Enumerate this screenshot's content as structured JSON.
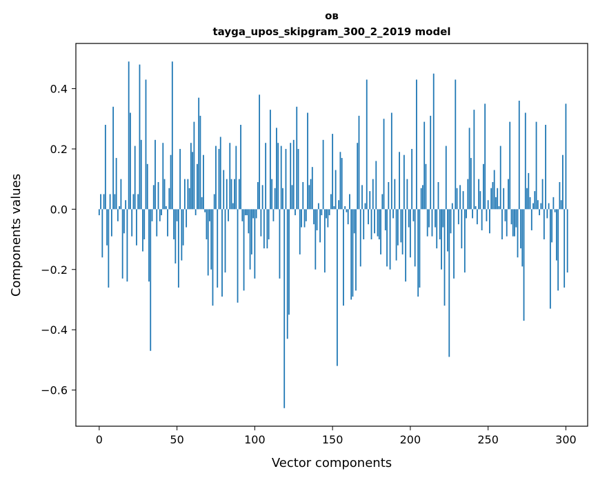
{
  "chart_data": {
    "type": "bar",
    "title": "ов",
    "subtitle": "tayga_upos_skipgram_300_2_2019 model",
    "xlabel": "Vector components",
    "ylabel": "Components values",
    "xlim": [
      -15,
      314
    ],
    "ylim": [
      -0.72,
      0.55
    ],
    "xticks": [
      0,
      50,
      100,
      150,
      200,
      250,
      300
    ],
    "xtick_labels": [
      "0",
      "50",
      "100",
      "150",
      "200",
      "250",
      "300"
    ],
    "yticks": [
      -0.6,
      -0.4,
      -0.2,
      0.0,
      0.2,
      0.4
    ],
    "ytick_labels": [
      "−0.6",
      "−0.4",
      "−0.2",
      "0.0",
      "0.2",
      "0.4"
    ],
    "bar_color": "#1f77b4",
    "grid": false,
    "values": [
      -0.02,
      0.05,
      -0.16,
      0.05,
      0.28,
      -0.12,
      -0.26,
      0.05,
      -0.09,
      0.34,
      0.05,
      0.17,
      -0.04,
      0.01,
      0.1,
      -0.23,
      -0.08,
      0.03,
      -0.24,
      0.49,
      0.32,
      -0.09,
      0.05,
      0.21,
      -0.12,
      0.05,
      0.48,
      0.23,
      -0.14,
      -0.1,
      0.43,
      0.15,
      -0.24,
      -0.47,
      -0.04,
      0.08,
      0.23,
      -0.09,
      0.09,
      -0.04,
      -0.02,
      0.22,
      0.1,
      0.01,
      -0.09,
      0.07,
      0.18,
      0.49,
      -0.1,
      -0.18,
      -0.04,
      -0.26,
      0.2,
      -0.17,
      -0.12,
      0.1,
      -0.06,
      0.1,
      0.07,
      0.22,
      0.19,
      0.29,
      -0.02,
      0.15,
      0.37,
      0.31,
      0.04,
      0.18,
      -0.01,
      -0.1,
      -0.22,
      -0.04,
      -0.2,
      -0.32,
      0.05,
      0.21,
      -0.26,
      0.2,
      0.24,
      -0.29,
      0.13,
      -0.21,
      0.1,
      -0.04,
      0.22,
      0.1,
      0.02,
      0.1,
      0.21,
      -0.31,
      0.1,
      0.28,
      -0.04,
      -0.27,
      -0.02,
      -0.02,
      -0.08,
      -0.2,
      -0.15,
      -0.03,
      -0.23,
      -0.03,
      0.09,
      0.38,
      -0.09,
      0.08,
      -0.13,
      0.22,
      -0.13,
      -0.1,
      0.33,
      0.1,
      -0.04,
      0.07,
      0.27,
      0.22,
      -0.23,
      0.21,
      0.07,
      -0.66,
      0.2,
      -0.43,
      -0.35,
      0.22,
      0.08,
      0.23,
      -0.02,
      0.34,
      0.2,
      -0.15,
      -0.06,
      0.09,
      -0.06,
      -0.04,
      0.32,
      0.08,
      0.1,
      0.14,
      -0.05,
      -0.2,
      -0.07,
      0.02,
      -0.11,
      -0.02,
      0.23,
      -0.21,
      -0.03,
      -0.06,
      -0.02,
      0.05,
      0.25,
      0.01,
      0.13,
      -0.52,
      0.03,
      0.19,
      0.17,
      -0.32,
      0.01,
      -0.01,
      -0.05,
      0.05,
      -0.3,
      -0.29,
      -0.08,
      -0.27,
      0.22,
      0.31,
      -0.19,
      0.08,
      -0.1,
      0.02,
      0.43,
      -0.05,
      0.06,
      -0.1,
      0.1,
      -0.08,
      0.16,
      -0.09,
      -0.1,
      -0.15,
      0.05,
      0.3,
      -0.07,
      -0.19,
      0.09,
      -0.2,
      0.32,
      -0.03,
      0.1,
      -0.17,
      -0.12,
      0.19,
      -0.11,
      -0.15,
      0.18,
      -0.24,
      0.1,
      -0.06,
      -0.16,
      0.2,
      -0.04,
      -0.19,
      0.43,
      -0.29,
      -0.26,
      0.07,
      0.08,
      0.29,
      0.15,
      -0.09,
      -0.06,
      0.31,
      -0.09,
      0.45,
      -0.06,
      -0.13,
      0.09,
      -0.1,
      -0.2,
      -0.06,
      -0.32,
      0.21,
      -0.14,
      -0.49,
      -0.08,
      0.02,
      -0.23,
      0.43,
      0.07,
      -0.05,
      0.08,
      -0.13,
      0.06,
      -0.21,
      -0.03,
      0.1,
      0.27,
      0.17,
      -0.03,
      0.33,
      0.01,
      -0.05,
      0.1,
      0.06,
      -0.07,
      0.15,
      0.35,
      -0.04,
      0.03,
      -0.08,
      0.07,
      0.09,
      0.13,
      0.04,
      0.07,
      0.01,
      0.21,
      -0.1,
      0.07,
      -0.04,
      -0.09,
      0.1,
      0.29,
      -0.05,
      -0.09,
      -0.09,
      -0.06,
      -0.16,
      0.36,
      -0.13,
      -0.19,
      -0.37,
      0.32,
      0.07,
      0.12,
      0.04,
      -0.07,
      0.02,
      0.06,
      0.29,
      0.03,
      -0.02,
      0.02,
      0.1,
      -0.1,
      0.28,
      -0.03,
      0.02,
      -0.33,
      -0.11,
      0.04,
      -0.01,
      -0.17,
      -0.27,
      0.09,
      0.03,
      0.18,
      -0.26,
      0.35,
      -0.21
    ]
  }
}
